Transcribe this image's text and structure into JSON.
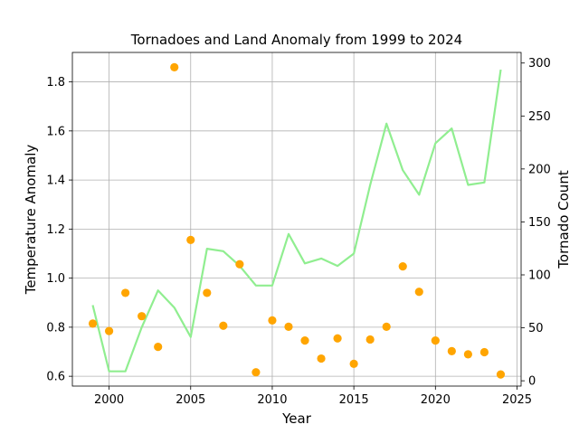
{
  "chart_data": {
    "type": "line+scatter",
    "title": "Tornadoes and Land Anomaly from 1999 to 2024",
    "xlabel": "Year",
    "ylabel_left": "Temperature Anomaly",
    "ylabel_right": "Tornado Count",
    "xlim": [
      1997.75,
      2025.25
    ],
    "ylim_left": [
      0.56,
      1.92
    ],
    "ylim_right": [
      -5,
      310
    ],
    "xticks": [
      2000,
      2005,
      2010,
      2015,
      2020,
      2025
    ],
    "yticks_left": [
      0.6,
      0.8,
      1.0,
      1.2,
      1.4,
      1.6,
      1.8
    ],
    "yticks_left_labels": [
      "0.6",
      "0.8",
      "1.0",
      "1.2",
      "1.4",
      "1.6",
      "1.8"
    ],
    "yticks_right": [
      0,
      50,
      100,
      150,
      200,
      250,
      300
    ],
    "grid": true,
    "line_color": "#90ee90",
    "scatter_color": "#ffa500",
    "x": [
      1999,
      2000,
      2001,
      2002,
      2003,
      2004,
      2005,
      2006,
      2007,
      2008,
      2009,
      2010,
      2011,
      2012,
      2013,
      2014,
      2015,
      2016,
      2017,
      2018,
      2019,
      2020,
      2021,
      2022,
      2023,
      2024
    ],
    "series": [
      {
        "axis": "left",
        "type": "line",
        "values": [
          0.89,
          0.62,
          0.62,
          0.8,
          0.95,
          0.88,
          0.76,
          1.12,
          1.11,
          1.05,
          0.97,
          0.97,
          1.18,
          1.06,
          1.08,
          1.05,
          1.1,
          1.38,
          1.63,
          1.44,
          1.34,
          1.55,
          1.61,
          1.38,
          1.39,
          1.85
        ]
      },
      {
        "axis": "right",
        "type": "scatter",
        "values": [
          54,
          47,
          83,
          61,
          32,
          296,
          133,
          83,
          52,
          110,
          8,
          57,
          51,
          38,
          21,
          40,
          16,
          39,
          51,
          108,
          84,
          38,
          28,
          25,
          27,
          6
        ]
      }
    ]
  }
}
